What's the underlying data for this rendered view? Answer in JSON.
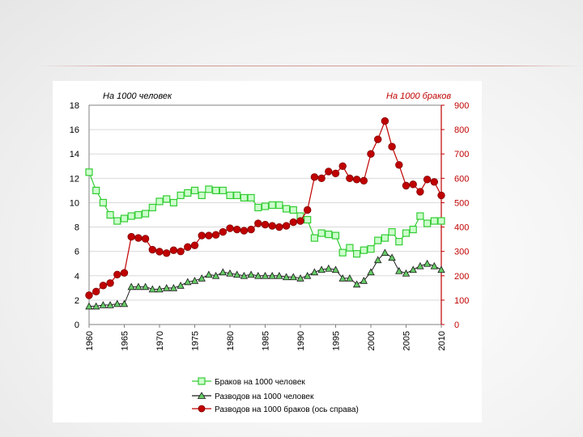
{
  "chart_data": {
    "type": "line",
    "left_axis_title": "На 1000 человек",
    "right_axis_title": "На 1000 браков",
    "left_ticks": [
      0,
      2,
      4,
      6,
      8,
      10,
      12,
      14,
      16,
      18
    ],
    "right_ticks": [
      0,
      100,
      200,
      300,
      400,
      500,
      600,
      700,
      800,
      900
    ],
    "ylim_left": [
      0,
      18
    ],
    "ylim_right": [
      0,
      900
    ],
    "xlim": [
      1960,
      2010
    ],
    "x_ticks": [
      1960,
      1965,
      1970,
      1975,
      1980,
      1985,
      1990,
      1995,
      2000,
      2005,
      2010
    ],
    "colors": {
      "marriages": "#33cc33",
      "marriages_fill": "#ccffcc",
      "divorces": "#1a1a1a",
      "divorces_fill": "#66cc66",
      "divorces_per_marriage": "#c00000",
      "right_axis": "#c00000"
    },
    "series": [
      {
        "id": "marriages",
        "name": "Браков на 1000 человек",
        "axis": "left",
        "x": [
          1960,
          1961,
          1962,
          1963,
          1964,
          1965,
          1966,
          1967,
          1968,
          1969,
          1970,
          1971,
          1972,
          1973,
          1974,
          1975,
          1976,
          1977,
          1978,
          1979,
          1980,
          1981,
          1982,
          1983,
          1984,
          1985,
          1986,
          1987,
          1988,
          1989,
          1990,
          1991,
          1992,
          1993,
          1994,
          1995,
          1996,
          1997,
          1998,
          1999,
          2000,
          2001,
          2002,
          2003,
          2004,
          2005,
          2006,
          2007,
          2008,
          2009,
          2010
        ],
        "values": [
          12.5,
          11.0,
          10.0,
          9.0,
          8.5,
          8.7,
          8.9,
          9.0,
          9.1,
          9.6,
          10.1,
          10.3,
          10.0,
          10.6,
          10.8,
          11.0,
          10.6,
          11.1,
          11.0,
          11.0,
          10.6,
          10.6,
          10.4,
          10.4,
          9.6,
          9.7,
          9.8,
          9.8,
          9.5,
          9.4,
          8.9,
          8.6,
          7.1,
          7.5,
          7.4,
          7.3,
          5.9,
          6.3,
          5.8,
          6.1,
          6.2,
          6.9,
          7.1,
          7.6,
          6.8,
          7.5,
          7.8,
          8.9,
          8.3,
          8.5,
          8.5
        ]
      },
      {
        "id": "divorces",
        "name": "Разводов на 1000 человек",
        "axis": "left",
        "x": [
          1960,
          1961,
          1962,
          1963,
          1964,
          1965,
          1966,
          1967,
          1968,
          1969,
          1970,
          1971,
          1972,
          1973,
          1974,
          1975,
          1976,
          1977,
          1978,
          1979,
          1980,
          1981,
          1982,
          1983,
          1984,
          1985,
          1986,
          1987,
          1988,
          1989,
          1990,
          1991,
          1992,
          1993,
          1994,
          1995,
          1996,
          1997,
          1998,
          1999,
          2000,
          2001,
          2002,
          2003,
          2004,
          2005,
          2006,
          2007,
          2008,
          2009,
          2010
        ],
        "values": [
          1.5,
          1.5,
          1.6,
          1.6,
          1.7,
          1.7,
          3.1,
          3.1,
          3.1,
          2.9,
          2.9,
          3.0,
          3.0,
          3.2,
          3.5,
          3.6,
          3.8,
          4.1,
          4.0,
          4.3,
          4.2,
          4.1,
          4.0,
          4.1,
          4.0,
          4.0,
          4.0,
          4.0,
          3.9,
          3.9,
          3.8,
          4.0,
          4.3,
          4.5,
          4.6,
          4.5,
          3.8,
          3.8,
          3.3,
          3.6,
          4.3,
          5.3,
          5.9,
          5.5,
          4.4,
          4.2,
          4.5,
          4.8,
          5.0,
          4.8,
          4.5
        ]
      },
      {
        "id": "divorces_per_marriage",
        "name": "Разводов на 1000 браков (ось справа)",
        "axis": "right",
        "x": [
          1960,
          1961,
          1962,
          1963,
          1964,
          1965,
          1966,
          1967,
          1968,
          1969,
          1970,
          1971,
          1972,
          1973,
          1974,
          1975,
          1976,
          1977,
          1978,
          1979,
          1980,
          1981,
          1982,
          1983,
          1984,
          1985,
          1986,
          1987,
          1988,
          1989,
          1990,
          1991,
          1992,
          1993,
          1994,
          1995,
          1996,
          1997,
          1998,
          1999,
          2000,
          2001,
          2002,
          2003,
          2004,
          2005,
          2006,
          2007,
          2008,
          2009,
          2010
        ],
        "values": [
          120,
          135,
          160,
          170,
          205,
          212,
          360,
          355,
          352,
          307,
          299,
          293,
          305,
          300,
          318,
          325,
          365,
          365,
          368,
          380,
          395,
          390,
          385,
          390,
          415,
          410,
          405,
          400,
          405,
          420,
          425,
          470,
          605,
          600,
          628,
          620,
          650,
          600,
          595,
          590,
          700,
          760,
          835,
          730,
          655,
          570,
          575,
          545,
          595,
          585,
          530
        ]
      }
    ],
    "legend": [
      "Браков на 1000 человек",
      "Разводов на 1000 человек",
      "Разводов на 1000 браков (ось справа)"
    ]
  }
}
